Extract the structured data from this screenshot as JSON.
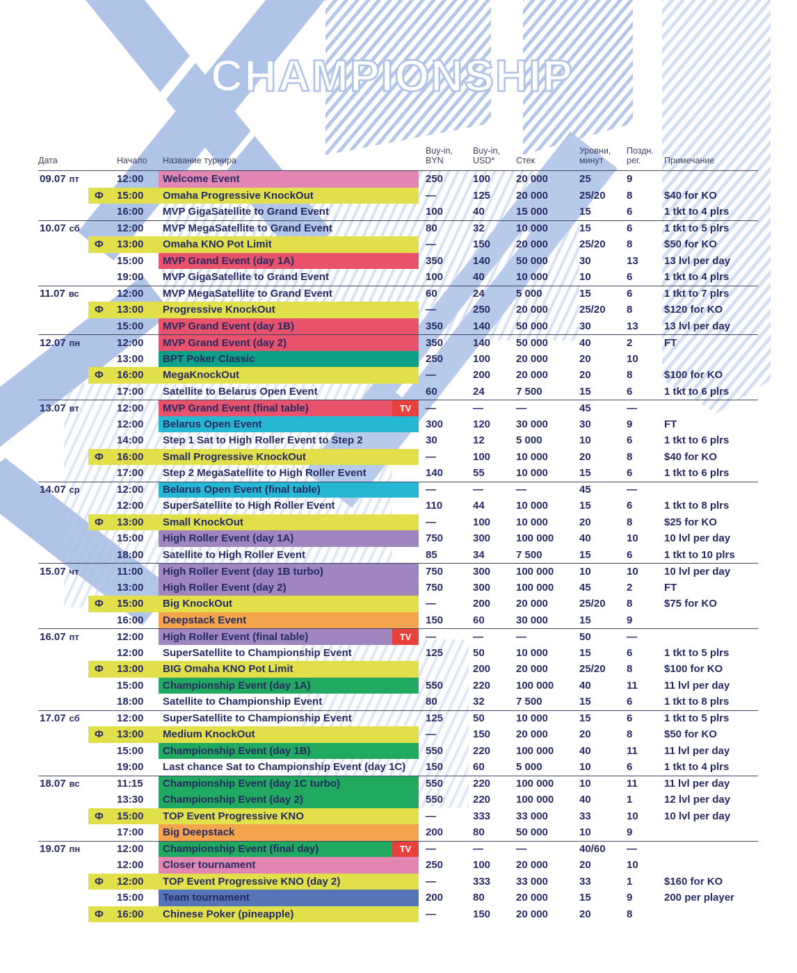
{
  "watermark": "CHAMPIONSHIP",
  "tv_label": "TV",
  "flag_symbol": "Ф",
  "colors": {
    "pink": "#E287B2",
    "yellow": "#E2E04A",
    "red": "#E8526B",
    "teal": "#0FA188",
    "cyan": "#26B8D2",
    "purple": "#9F86BF",
    "orange": "#F3A44C",
    "green": "#21AA5F",
    "blue": "#5674B8",
    "tv": "#E8403A",
    "text": "#252A63",
    "decoration": "#B0C4E7"
  },
  "table": {
    "columns": {
      "date": "Дата",
      "start": "Начало",
      "name": "Название турнира",
      "buyin_byn": "Buy-in,\nBYN",
      "buyin_usd": "Buy-in,\nUSD*",
      "stack": "Стек",
      "levels": "Уровни,\nминут",
      "late_reg": "Поздн.\nрег.",
      "note": "Примечание"
    },
    "rows": [
      {
        "date": "09.07 пт",
        "f": false,
        "time": "12:00",
        "name": "Welcome Event",
        "color": "pink",
        "tv": false,
        "byn": "250",
        "usd": "100",
        "stack": "20 000",
        "levels": "25",
        "late": "9",
        "note": "",
        "sep": false
      },
      {
        "date": "",
        "f": true,
        "time": "15:00",
        "name": "Omaha Progressive KnockOut",
        "color": "yellow",
        "tv": false,
        "byn": "—",
        "usd": "125",
        "stack": "20 000",
        "levels": "25/20",
        "late": "8",
        "note": "$40 for KO",
        "sep": false
      },
      {
        "date": "",
        "f": false,
        "time": "16:00",
        "name": "MVP GigaSatellite to Grand Event",
        "color": "none",
        "tv": false,
        "byn": "100",
        "usd": "40",
        "stack": "15 000",
        "levels": "15",
        "late": "6",
        "note": "1 tkt to 4 plrs",
        "sep": false
      },
      {
        "date": "10.07 сб",
        "f": false,
        "time": "12:00",
        "name": "MVP MegaSatellite to Grand Event",
        "color": "none",
        "tv": false,
        "byn": "80",
        "usd": "32",
        "stack": "10 000",
        "levels": "15",
        "late": "6",
        "note": "1 tkt to 5 plrs",
        "sep": true
      },
      {
        "date": "",
        "f": true,
        "time": "13:00",
        "name": "Omaha KNO Pot Limit",
        "color": "yellow",
        "tv": false,
        "byn": "—",
        "usd": "150",
        "stack": "20 000",
        "levels": "25/20",
        "late": "8",
        "note": "$50 for KO",
        "sep": false
      },
      {
        "date": "",
        "f": false,
        "time": "15:00",
        "name": "MVP Grand Event  (day 1A)",
        "color": "red",
        "tv": false,
        "byn": "350",
        "usd": "140",
        "stack": "50 000",
        "levels": "30",
        "late": "13",
        "note": "13 lvl per day",
        "sep": false
      },
      {
        "date": "",
        "f": false,
        "time": "19:00",
        "name": "MVP GigaSatellite to Grand Event",
        "color": "none",
        "tv": false,
        "byn": "100",
        "usd": "40",
        "stack": "10 000",
        "levels": "10",
        "late": "6",
        "note": "1 tkt to 4 plrs",
        "sep": false
      },
      {
        "date": "11.07 вс",
        "f": false,
        "time": "12:00",
        "name": "MVP MegaSatellite to Grand Event",
        "color": "none",
        "tv": false,
        "byn": "60",
        "usd": "24",
        "stack": "5 000",
        "levels": "15",
        "late": "6",
        "note": "1 tkt to 7 plrs",
        "sep": true
      },
      {
        "date": "",
        "f": true,
        "time": "13:00",
        "name": "Progressive KnockOut",
        "color": "yellow",
        "tv": false,
        "byn": "—",
        "usd": "250",
        "stack": "20 000",
        "levels": "25/20",
        "late": "8",
        "note": "$120 for KO",
        "sep": false
      },
      {
        "date": "",
        "f": false,
        "time": "15:00",
        "name": "MVP Grand Event  (day 1B)",
        "color": "red",
        "tv": false,
        "byn": "350",
        "usd": "140",
        "stack": "50 000",
        "levels": "30",
        "late": "13",
        "note": "13 lvl per day",
        "sep": false
      },
      {
        "date": "12.07 пн",
        "f": false,
        "time": "12:00",
        "name": "MVP Grand Event  (day 2)",
        "color": "red",
        "tv": false,
        "byn": "350",
        "usd": "140",
        "stack": "50 000",
        "levels": "40",
        "late": "2",
        "note": "FT",
        "sep": true
      },
      {
        "date": "",
        "f": false,
        "time": "13:00",
        "name": "BPT Poker Classic",
        "color": "teal",
        "tv": false,
        "byn": "250",
        "usd": "100",
        "stack": "20 000",
        "levels": "20",
        "late": "10",
        "note": "",
        "sep": false
      },
      {
        "date": "",
        "f": true,
        "time": "16:00",
        "name": "MegaKnockOut",
        "color": "yellow",
        "tv": false,
        "byn": "—",
        "usd": "200",
        "stack": "20 000",
        "levels": "20",
        "late": "8",
        "note": "$100 for KO",
        "sep": false
      },
      {
        "date": "",
        "f": false,
        "time": "17:00",
        "name": "Satellite to Belarus Open Event",
        "color": "none",
        "tv": false,
        "byn": "60",
        "usd": "24",
        "stack": "7 500",
        "levels": "15",
        "late": "6",
        "note": "1 tkt to 6 plrs",
        "sep": false
      },
      {
        "date": "13.07 вт",
        "f": false,
        "time": "12:00",
        "name": "MVP Grand Event  (final table)",
        "color": "red",
        "tv": true,
        "byn": "—",
        "usd": "—",
        "stack": "—",
        "levels": "45",
        "late": "—",
        "note": "",
        "sep": true
      },
      {
        "date": "",
        "f": false,
        "time": "12:00",
        "name": "Belarus Open Event",
        "color": "cyan",
        "tv": false,
        "byn": "300",
        "usd": "120",
        "stack": "30 000",
        "levels": "30",
        "late": "9",
        "note": "FT",
        "sep": false
      },
      {
        "date": "",
        "f": false,
        "time": "14:00",
        "name": "Step 1 Sat to High Roller Event to Step 2",
        "color": "none",
        "tv": false,
        "byn": "30",
        "usd": "12",
        "stack": "5 000",
        "levels": "10",
        "late": "6",
        "note": "1 tkt to 6 plrs",
        "sep": false
      },
      {
        "date": "",
        "f": true,
        "time": "16:00",
        "name": "Small Progressive KnockOut",
        "color": "yellow",
        "tv": false,
        "byn": "—",
        "usd": "100",
        "stack": "10 000",
        "levels": "20",
        "late": "8",
        "note": "$40 for KO",
        "sep": false
      },
      {
        "date": "",
        "f": false,
        "time": "17:00",
        "name": "Step 2 MegaSatellite to High Roller Event",
        "color": "none",
        "tv": false,
        "byn": "140",
        "usd": "55",
        "stack": "10 000",
        "levels": "15",
        "late": "6",
        "note": "1 tkt to 6 plrs",
        "sep": false
      },
      {
        "date": "14.07 ср",
        "f": false,
        "time": "12:00",
        "name": "Belarus Open Event (final table)",
        "color": "cyan",
        "tv": false,
        "byn": "—",
        "usd": "—",
        "stack": "—",
        "levels": "45",
        "late": "—",
        "note": "",
        "sep": true
      },
      {
        "date": "",
        "f": false,
        "time": "12:00",
        "name": "SuperSatellite to High Roller Event",
        "color": "none",
        "tv": false,
        "byn": "110",
        "usd": "44",
        "stack": "10 000",
        "levels": "15",
        "late": "6",
        "note": "1 tkt to 8 plrs",
        "sep": false
      },
      {
        "date": "",
        "f": true,
        "time": "13:00",
        "name": "Small KnockOut",
        "color": "yellow",
        "tv": false,
        "byn": "—",
        "usd": "100",
        "stack": "10 000",
        "levels": "20",
        "late": "8",
        "note": "$25 for KO",
        "sep": false
      },
      {
        "date": "",
        "f": false,
        "time": "15:00",
        "name": "High Roller Event (day 1A)",
        "color": "purple",
        "tv": false,
        "byn": "750",
        "usd": "300",
        "stack": "100 000",
        "levels": "40",
        "late": "10",
        "note": "10 lvl per day",
        "sep": false
      },
      {
        "date": "",
        "f": false,
        "time": "18:00",
        "name": "Satellite to High Roller Event",
        "color": "none",
        "tv": false,
        "byn": "85",
        "usd": "34",
        "stack": "7 500",
        "levels": "15",
        "late": "6",
        "note": "1 tkt to 10 plrs",
        "sep": false
      },
      {
        "date": "15.07 чт",
        "f": false,
        "time": "11:00",
        "name": "High Roller Event (day 1B turbo)",
        "color": "purple",
        "tv": false,
        "byn": "750",
        "usd": "300",
        "stack": "100 000",
        "levels": "10",
        "late": "10",
        "note": "10 lvl per day",
        "sep": true
      },
      {
        "date": "",
        "f": false,
        "time": "13:00",
        "name": "High Roller Event (day 2)",
        "color": "purple",
        "tv": false,
        "byn": "750",
        "usd": "300",
        "stack": "100 000",
        "levels": "45",
        "late": "2",
        "note": "FT",
        "sep": false
      },
      {
        "date": "",
        "f": true,
        "time": "15:00",
        "name": "Big KnockOut",
        "color": "yellow",
        "tv": false,
        "byn": "—",
        "usd": "200",
        "stack": "20 000",
        "levels": "25/20",
        "late": "8",
        "note": "$75 for KO",
        "sep": false
      },
      {
        "date": "",
        "f": false,
        "time": "16:00",
        "name": "Deepstack Event",
        "color": "orange",
        "tv": false,
        "byn": "150",
        "usd": "60",
        "stack": "30 000",
        "levels": "15",
        "late": "9",
        "note": "",
        "sep": false
      },
      {
        "date": "16.07 пт",
        "f": false,
        "time": "12:00",
        "name": "High Roller Event (final table)",
        "color": "purple",
        "tv": true,
        "byn": "—",
        "usd": "—",
        "stack": "—",
        "levels": "50",
        "late": "—",
        "note": "",
        "sep": true
      },
      {
        "date": "",
        "f": false,
        "time": "12:00",
        "name": "SuperSatellite to Championship Event",
        "color": "none",
        "tv": false,
        "byn": "125",
        "usd": "50",
        "stack": "10 000",
        "levels": "15",
        "late": "6",
        "note": "1 tkt to 5 plrs",
        "sep": false
      },
      {
        "date": "",
        "f": true,
        "time": "13:00",
        "name": "BIG Omaha KNO Pot Limit",
        "color": "yellow",
        "tv": false,
        "byn": "",
        "usd": "200",
        "stack": "20 000",
        "levels": "25/20",
        "late": "8",
        "note": "$100 for KO",
        "sep": false
      },
      {
        "date": "",
        "f": false,
        "time": "15:00",
        "name": "Championship Event  (day 1A)",
        "color": "green",
        "tv": false,
        "byn": "550",
        "usd": "220",
        "stack": "100 000",
        "levels": "40",
        "late": "11",
        "note": "11 lvl per day",
        "sep": false
      },
      {
        "date": "",
        "f": false,
        "time": "18:00",
        "name": "Satellite to Championship Event",
        "color": "none",
        "tv": false,
        "byn": "80",
        "usd": "32",
        "stack": "7 500",
        "levels": "15",
        "late": "6",
        "note": "1 tkt to 8 plrs",
        "sep": false
      },
      {
        "date": "17.07 сб",
        "f": false,
        "time": "12:00",
        "name": "SuperSatellite to Championship Event",
        "color": "none",
        "tv": false,
        "byn": "125",
        "usd": "50",
        "stack": "10 000",
        "levels": "15",
        "late": "6",
        "note": "1 tkt to 5 plrs",
        "sep": true
      },
      {
        "date": "",
        "f": true,
        "time": "13:00",
        "name": "Medium KnockOut",
        "color": "yellow",
        "tv": false,
        "byn": "—",
        "usd": "150",
        "stack": "20 000",
        "levels": "20",
        "late": "8",
        "note": "$50 for KO",
        "sep": false
      },
      {
        "date": "",
        "f": false,
        "time": "15:00",
        "name": "Championship Event  (day 1B)",
        "color": "green",
        "tv": false,
        "byn": "550",
        "usd": "220",
        "stack": "100 000",
        "levels": "40",
        "late": "11",
        "note": "11 lvl per day",
        "sep": false
      },
      {
        "date": "",
        "f": false,
        "time": "19:00",
        "name": "Last chance Sat to Championship  Event (day 1C)",
        "color": "none",
        "tv": false,
        "byn": "150",
        "usd": "60",
        "stack": "5 000",
        "levels": "10",
        "late": "6",
        "note": "1 tkt to 4 plrs",
        "sep": false
      },
      {
        "date": "18.07 вс",
        "f": false,
        "time": "11:15",
        "name": "Championship Event  (day 1C turbo)",
        "color": "green",
        "tv": false,
        "byn": "550",
        "usd": "220",
        "stack": "100 000",
        "levels": "10",
        "late": "11",
        "note": "11 lvl per day",
        "sep": true
      },
      {
        "date": "",
        "f": false,
        "time": "13:30",
        "name": "Championship Event  (day 2)",
        "color": "green",
        "tv": false,
        "byn": "550",
        "usd": "220",
        "stack": "100 000",
        "levels": "40",
        "late": "1",
        "note": "12 lvl per day",
        "sep": false
      },
      {
        "date": "",
        "f": true,
        "time": "15:00",
        "name": "TOP Event Progressive KNO",
        "color": "yellow",
        "tv": false,
        "byn": "—",
        "usd": "333",
        "stack": "33 000",
        "levels": "33",
        "late": "10",
        "note": "10 lvl per day",
        "sep": false
      },
      {
        "date": "",
        "f": false,
        "time": "17:00",
        "name": "Big Deepstack",
        "color": "orange",
        "tv": false,
        "byn": "200",
        "usd": "80",
        "stack": "50 000",
        "levels": "10",
        "late": "9",
        "note": "",
        "sep": false
      },
      {
        "date": "19.07 пн",
        "f": false,
        "time": "12:00",
        "name": "Championship Event  (final day)",
        "color": "green",
        "tv": true,
        "byn": "—",
        "usd": "—",
        "stack": "—",
        "levels": "40/60",
        "late": "—",
        "note": "",
        "sep": true
      },
      {
        "date": "",
        "f": false,
        "time": "12:00",
        "name": "Closer tournament",
        "color": "pink",
        "tv": false,
        "byn": "250",
        "usd": "100",
        "stack": "20 000",
        "levels": "20",
        "late": "10",
        "note": "",
        "sep": false
      },
      {
        "date": "",
        "f": true,
        "time": "12:00",
        "name": "TOP Event Progressive KNO (day 2)",
        "color": "yellow",
        "tv": false,
        "byn": "—",
        "usd": "333",
        "stack": "33 000",
        "levels": "33",
        "late": "1",
        "note": "$160 for KO",
        "sep": false
      },
      {
        "date": "",
        "f": false,
        "time": "15:00",
        "name": "Team tournament",
        "color": "blue",
        "tv": false,
        "byn": "200",
        "usd": "80",
        "stack": "20 000",
        "levels": "15",
        "late": "9",
        "note": "200 per player",
        "sep": false
      },
      {
        "date": "",
        "f": true,
        "time": "16:00",
        "name": "Chinese Poker (pineapple)",
        "color": "yellow",
        "tv": false,
        "byn": "—",
        "usd": "150",
        "stack": "20 000",
        "levels": "20",
        "late": "8",
        "note": "",
        "sep": false
      }
    ]
  }
}
